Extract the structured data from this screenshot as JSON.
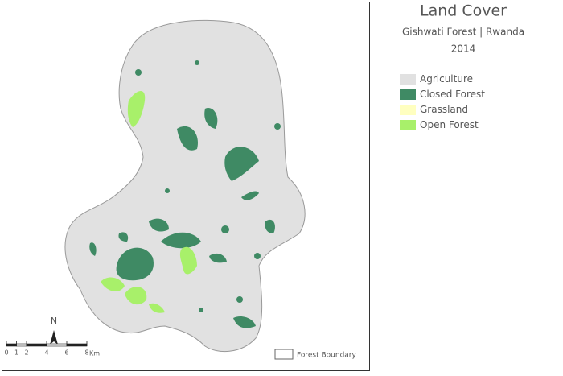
{
  "title": "Land Cover",
  "subtitle": "Gishwati Forest | Rwanda",
  "year": "2014",
  "legend": [
    {
      "label": "Agriculture",
      "color": "#e1e1e1"
    },
    {
      "label": "Closed Forest",
      "color": "#3f8a64"
    },
    {
      "label": "Grassland",
      "color": "#ffffc0"
    },
    {
      "label": "Open Forest",
      "color": "#a8f06a"
    }
  ],
  "north_arrow": "N",
  "scale_bar": {
    "ticks": [
      0,
      1,
      2,
      4,
      6,
      8
    ],
    "unit": "Km"
  },
  "boundary_legend": "Forest Boundary"
}
